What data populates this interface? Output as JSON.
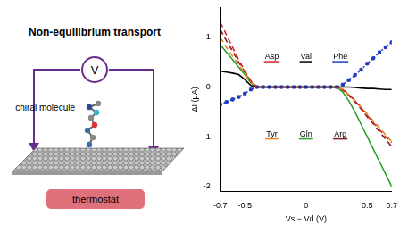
{
  "diagram": {
    "title": "Non-equilibrium transport",
    "voltage_label": "V",
    "molecule_label": "chiral molecule",
    "bath_label": "thermostat"
  },
  "chart_data": {
    "type": "line",
    "x_label": "Vs − Vd (V)",
    "y_label": "ΔI (μA)",
    "x": [
      -0.7,
      -0.65,
      -0.6,
      -0.55,
      -0.5,
      -0.45,
      -0.4,
      -0.35,
      -0.3,
      -0.25,
      -0.2,
      -0.15,
      -0.1,
      -0.05,
      0,
      0.05,
      0.1,
      0.15,
      0.2,
      0.25,
      0.3,
      0.35,
      0.4,
      0.45,
      0.5,
      0.55,
      0.6,
      0.65,
      0.7
    ],
    "xlim": [
      -0.7,
      0.7
    ],
    "xticks": [
      -0.7,
      -0.5,
      0,
      0.5,
      0.7
    ],
    "ylim": [
      -2.1,
      1.6
    ],
    "yticks": [
      -2,
      -1,
      0,
      1
    ],
    "grid": false,
    "series": [
      {
        "name": "Asp",
        "color": "#d62728",
        "line_style": "dashed",
        "marker": "none",
        "values": [
          1.3,
          1.05,
          0.8,
          0.55,
          0.32,
          0.12,
          0,
          0,
          0,
          0,
          0,
          0,
          0,
          0,
          0,
          0,
          0,
          0,
          0,
          0,
          -0.05,
          -0.15,
          -0.28,
          -0.42,
          -0.57,
          -0.72,
          -0.86,
          -1.0,
          -1.12
        ]
      },
      {
        "name": "Val",
        "color": "#000000",
        "line_style": "solid",
        "marker": "none",
        "values": [
          0.32,
          0.3,
          0.28,
          0.25,
          0.15,
          0.03,
          0,
          0,
          0,
          0,
          0,
          0,
          0,
          0,
          0,
          0,
          0,
          0,
          0,
          0,
          0,
          0,
          -0.01,
          -0.02,
          -0.03,
          -0.03,
          -0.04,
          -0.05,
          -0.05
        ]
      },
      {
        "name": "Phe",
        "color": "#1f3fbf",
        "line_style": "dotted",
        "marker": "circle",
        "values": [
          -0.35,
          -0.3,
          -0.25,
          -0.2,
          -0.13,
          -0.05,
          0,
          0,
          0,
          0,
          0,
          0,
          0,
          0,
          0,
          0,
          0,
          0,
          0,
          0,
          0.05,
          0.14,
          0.24,
          0.35,
          0.47,
          0.58,
          0.7,
          0.8,
          0.9
        ]
      },
      {
        "name": "Tyr",
        "color": "#e08a1e",
        "line_style": "dashed",
        "marker": "none",
        "values": [
          1.0,
          0.8,
          0.62,
          0.45,
          0.28,
          0.1,
          0,
          0,
          0,
          0,
          0,
          0,
          0,
          0,
          0,
          0,
          0,
          0,
          0,
          0,
          -0.05,
          -0.15,
          -0.27,
          -0.4,
          -0.54,
          -0.68,
          -0.82,
          -0.96,
          -1.1
        ]
      },
      {
        "name": "Gln",
        "color": "#2ca02c",
        "line_style": "solid",
        "marker": "none",
        "values": [
          0.85,
          0.7,
          0.55,
          0.4,
          0.25,
          0.08,
          0,
          0,
          0,
          0,
          0,
          0,
          0,
          0,
          0,
          0,
          0,
          0,
          0,
          0,
          -0.1,
          -0.28,
          -0.5,
          -0.75,
          -1.0,
          -1.25,
          -1.5,
          -1.75,
          -2.0
        ]
      },
      {
        "name": "Arg",
        "color": "#8b1a1a",
        "line_style": "dashed",
        "marker": "none",
        "values": [
          1.15,
          0.93,
          0.72,
          0.5,
          0.3,
          0.1,
          0,
          0,
          0,
          0,
          0,
          0,
          0,
          0,
          0,
          0,
          0,
          0,
          0,
          0,
          -0.06,
          -0.17,
          -0.3,
          -0.44,
          -0.6,
          -0.74,
          -0.9,
          -1.05,
          -1.2
        ]
      }
    ]
  }
}
